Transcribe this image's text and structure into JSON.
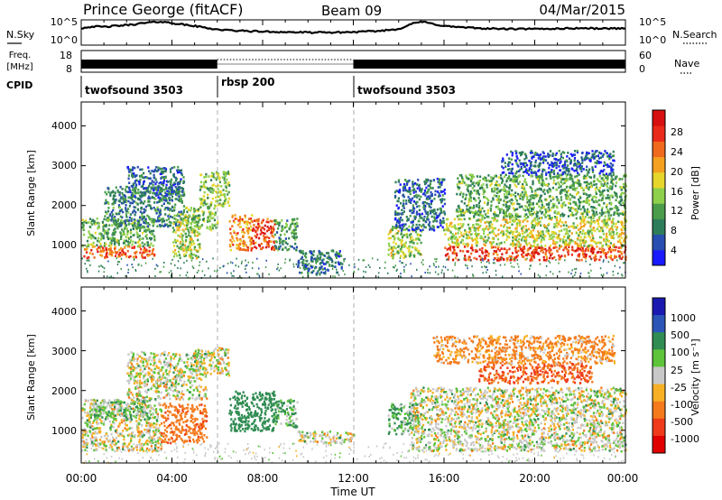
{
  "header": {
    "station": "Prince George (fitACF)",
    "beam": "Beam 09",
    "date": "04/Mar/2015"
  },
  "sky_panel": {
    "left_label": "N.Sky",
    "right_label": "N.Search",
    "left_ticks": [
      "10^5",
      "10^0"
    ],
    "right_ticks": [
      "10^5",
      "10^0"
    ],
    "trace": [
      [
        0,
        3.5
      ],
      [
        0.5,
        3.9
      ],
      [
        1,
        3.8
      ],
      [
        1.5,
        4.0
      ],
      [
        2,
        4.2
      ],
      [
        2.5,
        4.5
      ],
      [
        3,
        4.8
      ],
      [
        3.5,
        5.0
      ],
      [
        4,
        4.7
      ],
      [
        4.5,
        4.3
      ],
      [
        5,
        4.0
      ],
      [
        5.5,
        3.6
      ],
      [
        6,
        3.2
      ],
      [
        6.5,
        3.0
      ],
      [
        7,
        2.9
      ],
      [
        8,
        2.7
      ],
      [
        9,
        2.6
      ],
      [
        10,
        2.5
      ],
      [
        11,
        2.5
      ],
      [
        12,
        2.6
      ],
      [
        13,
        2.8
      ],
      [
        14,
        3.3
      ],
      [
        14.5,
        4.4
      ],
      [
        15,
        5.0
      ],
      [
        15.5,
        4.5
      ],
      [
        16,
        4.0
      ],
      [
        17,
        3.6
      ],
      [
        18,
        3.4
      ],
      [
        19,
        3.3
      ],
      [
        20,
        3.3
      ],
      [
        21,
        3.4
      ],
      [
        22,
        3.5
      ],
      [
        23,
        3.4
      ],
      [
        24,
        3.5
      ]
    ]
  },
  "freq_panel": {
    "left_label_top": "Freq.",
    "left_label_bottom": "[MHz]",
    "left_ticks": [
      "18",
      "8"
    ],
    "right_label": "Nave",
    "right_ticks": [
      "60",
      "0"
    ],
    "solid_segments": [
      [
        0,
        6
      ],
      [
        12,
        24
      ]
    ],
    "dotted_segment": [
      6,
      12
    ]
  },
  "cpid_panel": {
    "label": "CPID",
    "segments": [
      {
        "start": 0,
        "name": "twofsound 3503"
      },
      {
        "start": 6,
        "name": "rbsp 200"
      },
      {
        "start": 12,
        "name": "twofsound 3503"
      }
    ]
  },
  "power_panel": {
    "ylabel": "Slant Range [km]",
    "yticks": [
      "1000",
      "2000",
      "3000",
      "4000"
    ],
    "colorbar_label": "Power [dB]",
    "colorbar_ticks": [
      "4",
      "8",
      "12",
      "16",
      "20",
      "24",
      "28"
    ],
    "colors": [
      "#1a1aff",
      "#274eb0",
      "#2e7d5a",
      "#4a9c4a",
      "#8ed04c",
      "#e6d62c",
      "#f4a020",
      "#ef6a1c",
      "#ea2a1a",
      "#d61010"
    ]
  },
  "velocity_panel": {
    "ylabel": "Slant Range [km]",
    "yticks": [
      "1000",
      "2000",
      "3000",
      "4000"
    ],
    "colorbar_label": "Velocity [m s⁻¹]",
    "colorbar_ticks": [
      "1000",
      "500",
      "100",
      "25",
      "-25",
      "-100",
      "-500",
      "-1000"
    ],
    "colors": [
      "#1a1ab0",
      "#2b56b8",
      "#2f8c52",
      "#5ec43a",
      "#c8c8c8",
      "#f7b025",
      "#f47a1c",
      "#ee3a1a",
      "#e00000"
    ]
  },
  "xaxis": {
    "ticks": [
      "00:00",
      "04:00",
      "08:00",
      "12:00",
      "16:00",
      "20:00",
      "00:00"
    ],
    "label": "Time UT"
  },
  "chart_data": [
    {
      "type": "line",
      "title": "N.Sky / N.Search",
      "x_range_hours": [
        0,
        24
      ],
      "y_scale": "log",
      "ylim_exponent": [
        0,
        5
      ]
    },
    {
      "type": "bar",
      "title": "Freq. [MHz] / Nave",
      "ylim_left": [
        8,
        18
      ],
      "ylim_right": [
        0,
        60
      ]
    },
    {
      "type": "heatmap",
      "title": "Power [dB]",
      "xlim_hours": [
        0,
        24
      ],
      "ylim_km": [
        180,
        4600
      ],
      "clim": [
        0,
        30
      ],
      "blobs": [
        {
          "t0": 0.0,
          "t1": 3.2,
          "r0": 700,
          "r1": 1000,
          "v": 23
        },
        {
          "t0": 0.0,
          "t1": 3.2,
          "r0": 1000,
          "r1": 1700,
          "v": 11
        },
        {
          "t0": 1.0,
          "t1": 4.5,
          "r0": 1500,
          "r1": 2500,
          "v": 8
        },
        {
          "t0": 2.0,
          "t1": 4.5,
          "r0": 2200,
          "r1": 3000,
          "v": 6
        },
        {
          "t0": 4.0,
          "t1": 5.2,
          "r0": 700,
          "r1": 1800,
          "v": 14
        },
        {
          "t0": 4.5,
          "t1": 6.0,
          "r0": 1400,
          "r1": 2000,
          "v": 12
        },
        {
          "t0": 5.2,
          "t1": 6.5,
          "r0": 2000,
          "r1": 2900,
          "v": 13
        },
        {
          "t0": 6.5,
          "t1": 7.5,
          "r0": 900,
          "r1": 1800,
          "v": 21
        },
        {
          "t0": 7.5,
          "t1": 8.5,
          "r0": 900,
          "r1": 1700,
          "v": 25
        },
        {
          "t0": 8.5,
          "t1": 9.5,
          "r0": 900,
          "r1": 1700,
          "v": 10
        },
        {
          "t0": 9.5,
          "t1": 11.5,
          "r0": 300,
          "r1": 900,
          "v": 7
        },
        {
          "t0": 13.5,
          "t1": 15.0,
          "r0": 700,
          "r1": 1500,
          "v": 14
        },
        {
          "t0": 13.8,
          "t1": 16.0,
          "r0": 1400,
          "r1": 2700,
          "v": 6
        },
        {
          "t0": 16.0,
          "t1": 24.0,
          "r0": 650,
          "r1": 1000,
          "v": 25
        },
        {
          "t0": 16.0,
          "t1": 24.0,
          "r0": 1000,
          "r1": 1700,
          "v": 15
        },
        {
          "t0": 16.5,
          "t1": 24.0,
          "r0": 1700,
          "r1": 2800,
          "v": 11
        },
        {
          "t0": 18.5,
          "t1": 23.5,
          "r0": 2800,
          "r1": 3400,
          "v": 5
        }
      ]
    },
    {
      "type": "heatmap",
      "title": "Velocity [m s^-1]",
      "xlim_hours": [
        0,
        24
      ],
      "ylim_km": [
        180,
        4600
      ],
      "blobs": [
        {
          "t0": 0.0,
          "t1": 3.5,
          "r0": 500,
          "r1": 1800,
          "v": 0
        },
        {
          "t0": 0.5,
          "t1": 3.0,
          "r0": 1300,
          "r1": 1800,
          "v": 40
        },
        {
          "t0": 2.0,
          "t1": 5.5,
          "r0": 1800,
          "r1": 3000,
          "v": 0
        },
        {
          "t0": 3.5,
          "t1": 5.5,
          "r0": 700,
          "r1": 1700,
          "v": -250
        },
        {
          "t0": 5.0,
          "t1": 6.5,
          "r0": 2400,
          "r1": 3100,
          "v": 0
        },
        {
          "t0": 6.5,
          "t1": 8.5,
          "r0": 1000,
          "r1": 2000,
          "v": 200
        },
        {
          "t0": 8.5,
          "t1": 9.5,
          "r0": 1100,
          "r1": 1800,
          "v": 60
        },
        {
          "t0": 9.5,
          "t1": 12.0,
          "r0": 700,
          "r1": 1000,
          "v": 0
        },
        {
          "t0": 13.5,
          "t1": 14.8,
          "r0": 900,
          "r1": 1700,
          "v": 60
        },
        {
          "t0": 14.5,
          "t1": 24.0,
          "r0": 500,
          "r1": 2100,
          "v": 0
        },
        {
          "t0": 17.5,
          "t1": 22.5,
          "r0": 2200,
          "r1": 2700,
          "v": -300
        },
        {
          "t0": 15.5,
          "t1": 23.5,
          "r0": 2700,
          "r1": 3400,
          "v": -80
        }
      ]
    }
  ]
}
